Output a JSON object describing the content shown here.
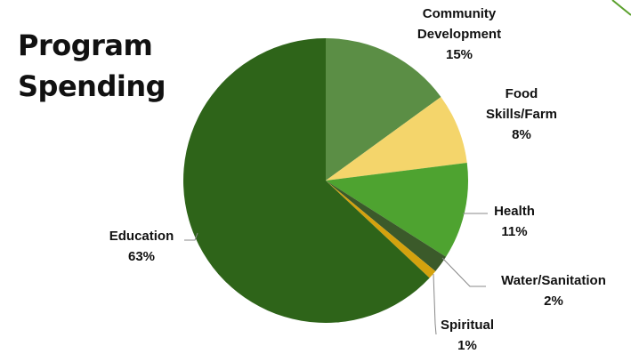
{
  "title": {
    "line1": "Program",
    "line2": "Spending"
  },
  "colors": {
    "corner_accent": "#5aa02c"
  },
  "chart_data": {
    "type": "pie",
    "title": "Program Spending",
    "start_angle_deg": 0,
    "direction": "clockwise",
    "slices": [
      {
        "label_lines": [
          "Community",
          "Development"
        ],
        "pct_label": "15%",
        "value": 15,
        "color": "#5b8e45"
      },
      {
        "label_lines": [
          "Food",
          "Skills/Farm"
        ],
        "pct_label": "8%",
        "value": 8,
        "color": "#f4d56b"
      },
      {
        "label_lines": [
          "Health"
        ],
        "pct_label": "11%",
        "value": 11,
        "color": "#4ea330"
      },
      {
        "label_lines": [
          "Water/Sanitation"
        ],
        "pct_label": "2%",
        "value": 2,
        "color": "#3b5a2a"
      },
      {
        "label_lines": [
          "Spiritual"
        ],
        "pct_label": "1%",
        "value": 1,
        "color": "#d4a20e"
      },
      {
        "label_lines": [
          "Education"
        ],
        "pct_label": "63%",
        "value": 63,
        "color": "#2e6419"
      }
    ]
  }
}
